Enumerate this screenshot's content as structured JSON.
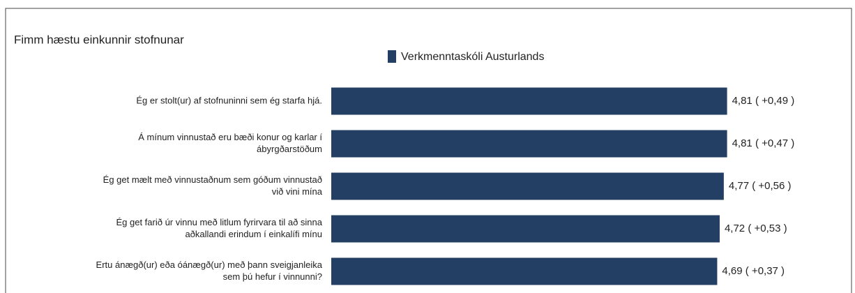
{
  "chart_data": {
    "type": "barh",
    "title": "Fimm hæstu einkunnir stofnunar",
    "categories": [
      [
        "Ég er stolt(ur) af stofnuninni sem ég starfa hjá."
      ],
      [
        "Á mínum vinnustað eru bæði konur og karlar í",
        "ábyrgðarstöðum"
      ],
      [
        "Ég get mælt með vinnustaðnum sem góðum vinnustað",
        "við vini mína"
      ],
      [
        "Ég get farið úr vinnu með litlum fyrirvara til að sinna",
        "aðkallandi erindum í einkalífi mínu"
      ],
      [
        "Ertu ánægð(ur) eða óánægð(ur) með þann sveigjanleika",
        "sem þú hefur í vinnunni?"
      ]
    ],
    "series": [
      {
        "name": "Verkmenntaskóli Austurlands",
        "color": "#233f63",
        "values": [
          4.81,
          4.81,
          4.77,
          4.72,
          4.69
        ],
        "value_labels": [
          "4,81 ( +0,49 )",
          "4,81 ( +0,47 )",
          "4,77 ( +0,56 )",
          "4,72 ( +0,53 )",
          "4,69 ( +0,37 )"
        ]
      }
    ],
    "xlim": [
      0,
      5
    ]
  }
}
